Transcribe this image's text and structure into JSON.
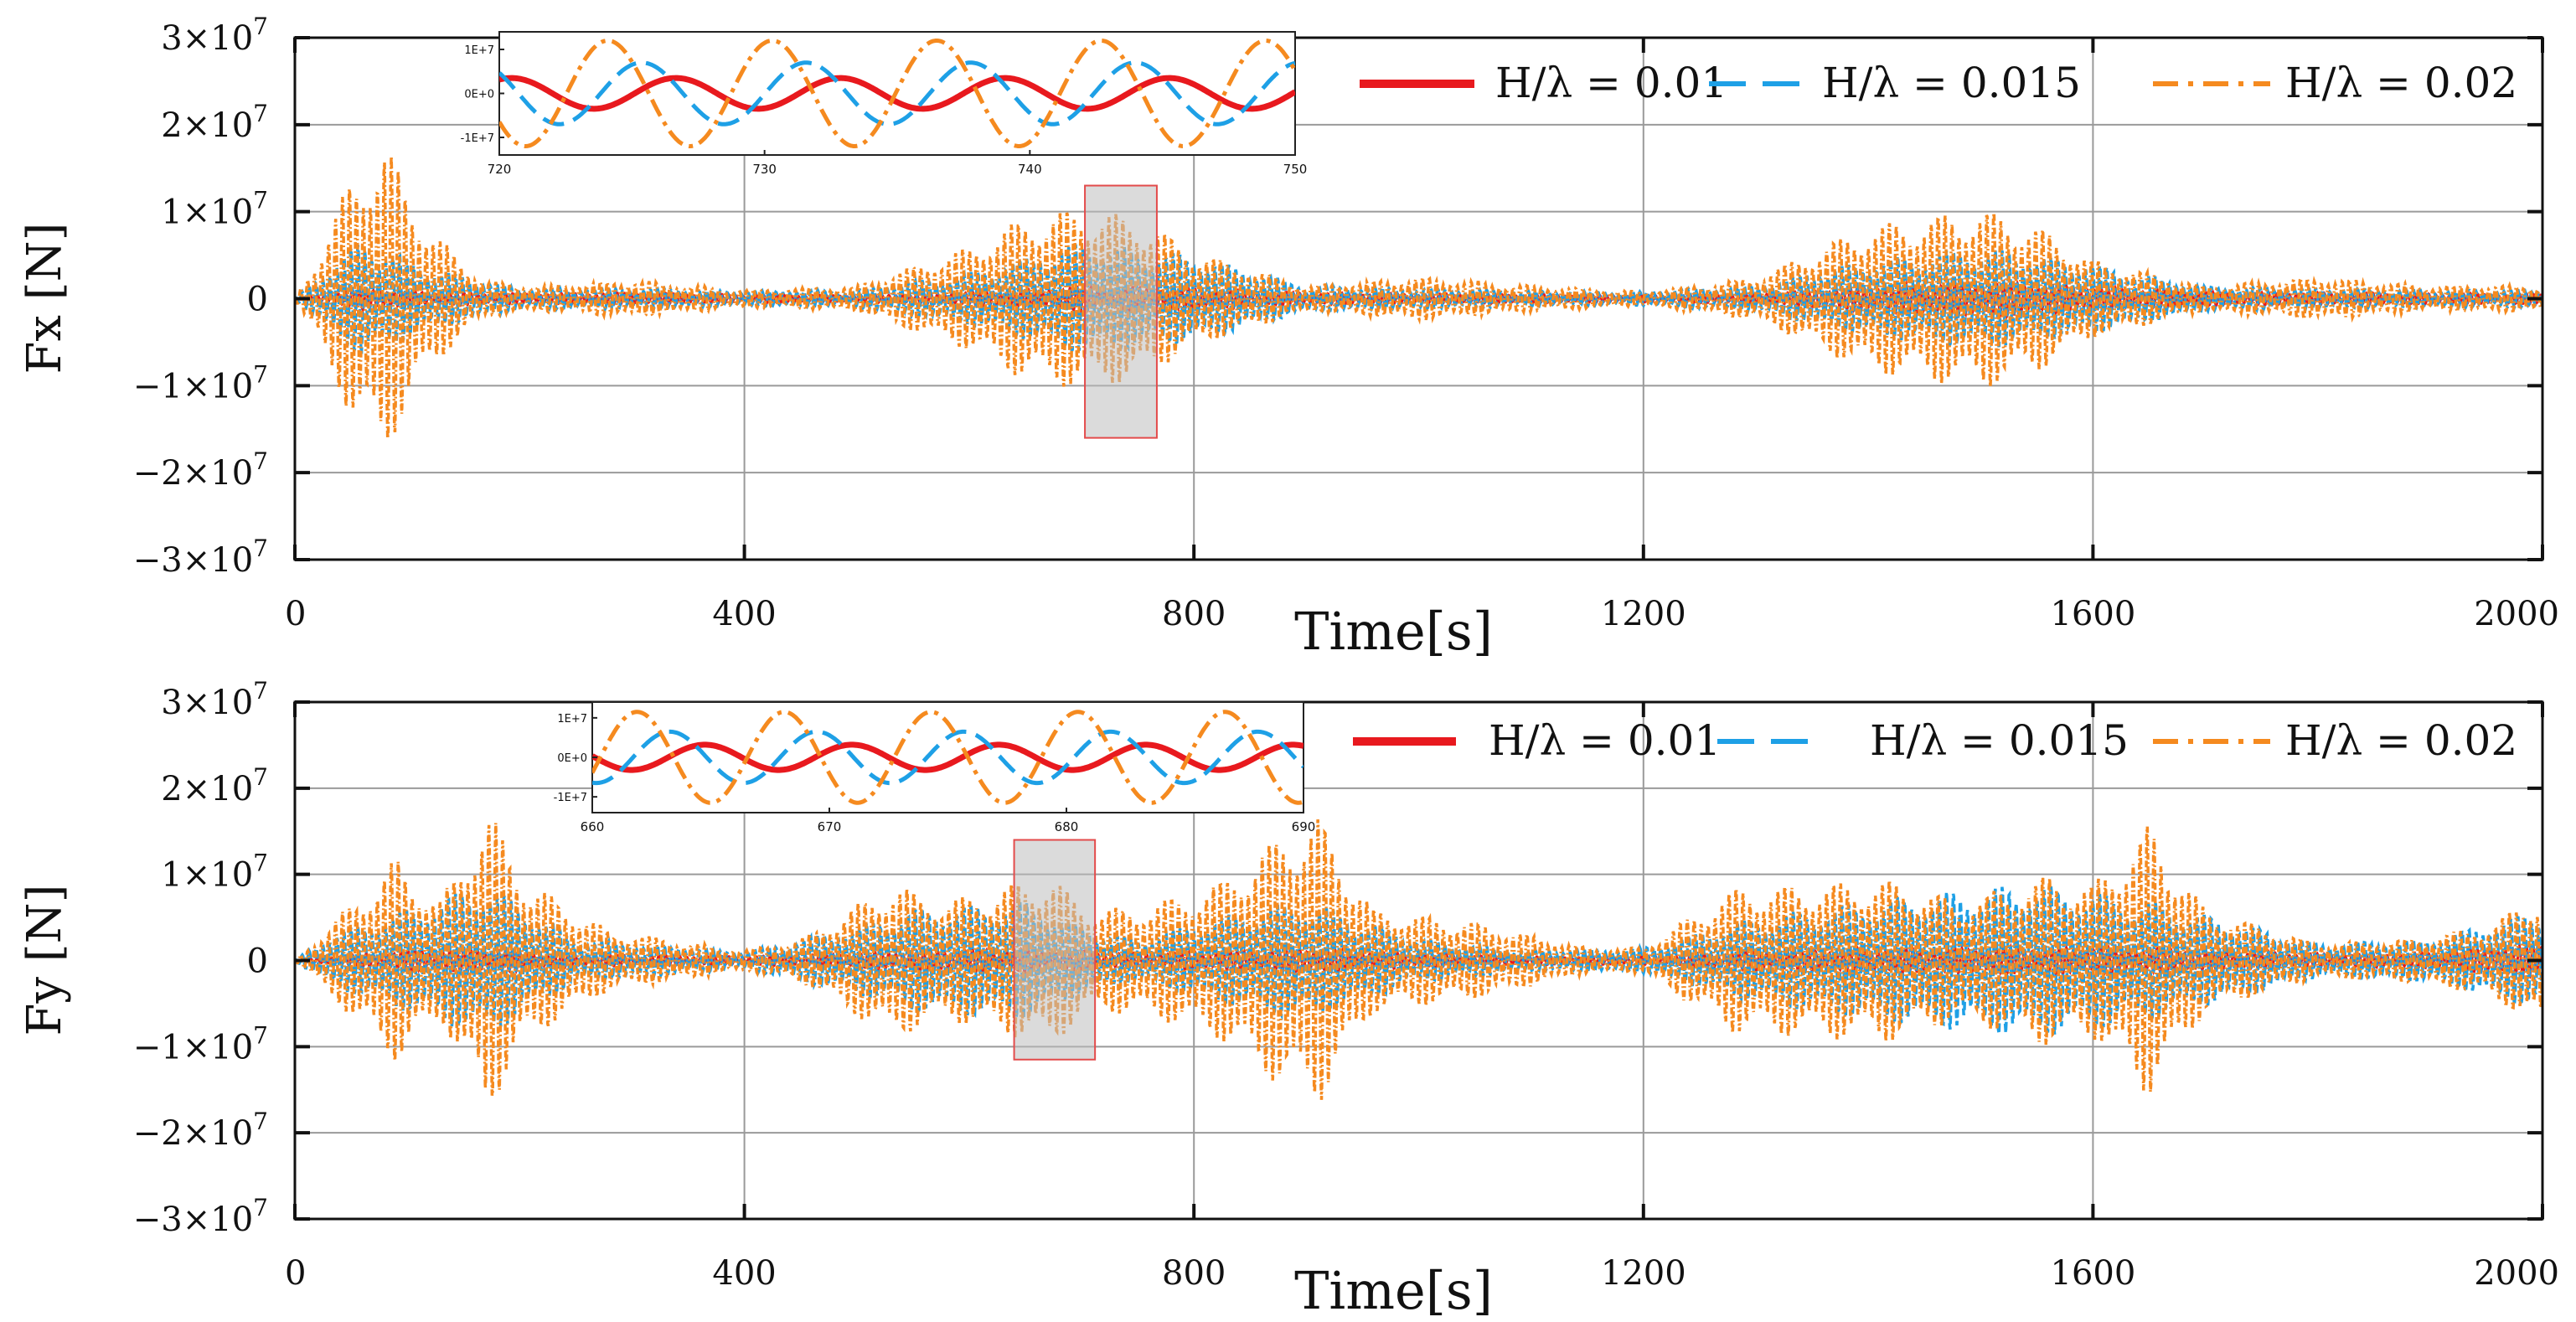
{
  "chart_data": [
    {
      "type": "line",
      "panel": "top",
      "ylabel": "Fx [N]",
      "xlabel": "Time[s]",
      "xlim": [
        0,
        2000
      ],
      "ylim": [
        -30000000,
        30000000
      ],
      "grid": true,
      "xticks": [
        {
          "value": 0,
          "label": "0"
        },
        {
          "value": 400,
          "label": "400"
        },
        {
          "value": 800,
          "label": "800"
        },
        {
          "value": 1200,
          "label": "1200"
        },
        {
          "value": 1600,
          "label": "1600"
        },
        {
          "value": 2000,
          "label": "2000"
        }
      ],
      "yticks": [
        {
          "value": 30000000,
          "mant": "3",
          "base": "×10",
          "exp": "7"
        },
        {
          "value": 20000000,
          "mant": "2",
          "base": "×10",
          "exp": "7"
        },
        {
          "value": 10000000,
          "mant": "1",
          "base": "×10",
          "exp": "7"
        },
        {
          "value": 0,
          "mant": "0",
          "base": "",
          "exp": ""
        },
        {
          "value": -10000000,
          "mant": "−1",
          "base": "×10",
          "exp": "7"
        },
        {
          "value": -20000000,
          "mant": "−2",
          "base": "×10",
          "exp": "7"
        },
        {
          "value": -30000000,
          "mant": "−3",
          "base": "×10",
          "exp": "7"
        }
      ],
      "highlight": {
        "x0": 703,
        "x1": 767,
        "y0": -16000000,
        "y1": 13000000
      },
      "legend": {
        "placement": "top-right",
        "entries": [
          {
            "label": "H/λ = 0.01",
            "color": "#e8191e",
            "style": "solid"
          },
          {
            "label": "H/λ = 0.015",
            "color": "#1ea0e6",
            "style": "dashed"
          },
          {
            "label": "H/λ = 0.02",
            "color": "#f58a1f",
            "style": "dashdot"
          }
        ]
      },
      "series": [
        {
          "name": "H/λ = 0.01",
          "color": "#e8191e",
          "style": "solid",
          "period": 6.2,
          "envelope": {
            "t": [
              0,
              20,
              60,
              120,
              200,
              300,
              400,
              500,
              600,
              700,
              800,
              900,
              1000,
              1100,
              1200,
              1300,
              1400,
              1500,
              1600,
              1700,
              1800,
              1900,
              2000
            ],
            "amp": [
              0,
              400000,
              1300000,
              800000,
              600000,
              700000,
              500000,
              400000,
              800000,
              1500000,
              1200000,
              700000,
              600000,
              500000,
              400000,
              600000,
              1500000,
              2200000,
              1400000,
              800000,
              700000,
              600000,
              600000
            ]
          }
        },
        {
          "name": "H/λ = 0.015",
          "color": "#1ea0e6",
          "style": "dashed",
          "period": 6.2,
          "envelope": {
            "t": [
              0,
              20,
              60,
              120,
              200,
              300,
              400,
              500,
              600,
              700,
              800,
              900,
              1000,
              1100,
              1200,
              1300,
              1400,
              1500,
              1600,
              1700,
              1800,
              1900,
              2000
            ],
            "amp": [
              0,
              2500000,
              7000000,
              3500000,
              1200000,
              1200000,
              900000,
              1000000,
              3000000,
              6500000,
              5000000,
              1500000,
              1200000,
              900000,
              800000,
              1500000,
              4500000,
              6000000,
              4000000,
              1400000,
              1200000,
              1000000,
              1000000
            ]
          }
        },
        {
          "name": "H/λ = 0.02",
          "color": "#f58a1f",
          "style": "dashdot",
          "period": 6.2,
          "envelope": {
            "t": [
              0,
              20,
              50,
              80,
              120,
              170,
              220,
              300,
              400,
              500,
              600,
              650,
              700,
              750,
              800,
              900,
              1000,
              1100,
              1200,
              1300,
              1400,
              1450,
              1500,
              1550,
              1600,
              1700,
              1800,
              1900,
              2000
            ],
            "amp": [
              0,
              5000000,
              14000000,
              18000000,
              8000000,
              2000000,
              1500000,
              2200000,
              1000000,
              1500000,
              6000000,
              9500000,
              10500000,
              9500000,
              5500000,
              1500000,
              2500000,
              1500000,
              800000,
              2500000,
              8500000,
              9500000,
              10500000,
              8500000,
              4500000,
              1500000,
              2500000,
              1500000,
              1500000
            ]
          }
        }
      ],
      "inset": {
        "xlim": [
          720,
          750
        ],
        "xticks": [
          720,
          730,
          740,
          750
        ],
        "yticks": [
          {
            "value": 10000000,
            "label": "1E+7"
          },
          {
            "value": 0,
            "label": "0E+0"
          },
          {
            "value": -10000000,
            "label": "-1E+7"
          }
        ],
        "ylim": [
          -14000000,
          14000000
        ],
        "series": [
          {
            "name": "H/λ = 0.01",
            "color": "#e8191e",
            "style": "solid",
            "amp": 3500000,
            "period": 6.2,
            "phase": 0.3
          },
          {
            "name": "H/λ = 0.015",
            "color": "#1ea0e6",
            "style": "dashed",
            "amp": 7000000,
            "period": 6.2,
            "phase": 1.6
          },
          {
            "name": "H/λ = 0.02",
            "color": "#f58a1f",
            "style": "dashdot",
            "amp": 12000000,
            "period": 6.2,
            "phase": 2.9
          }
        ]
      }
    },
    {
      "type": "line",
      "panel": "bottom",
      "ylabel": "Fy [N]",
      "xlabel": "Time[s]",
      "xlim": [
        0,
        2000
      ],
      "ylim": [
        -30000000,
        30000000
      ],
      "grid": true,
      "xticks": [
        {
          "value": 0,
          "label": "0"
        },
        {
          "value": 400,
          "label": "400"
        },
        {
          "value": 800,
          "label": "800"
        },
        {
          "value": 1200,
          "label": "1200"
        },
        {
          "value": 1600,
          "label": "1600"
        },
        {
          "value": 2000,
          "label": "2000"
        }
      ],
      "yticks": [
        {
          "value": 30000000,
          "mant": "3",
          "base": "×10",
          "exp": "7"
        },
        {
          "value": 20000000,
          "mant": "2",
          "base": "×10",
          "exp": "7"
        },
        {
          "value": 10000000,
          "mant": "1",
          "base": "×10",
          "exp": "7"
        },
        {
          "value": 0,
          "mant": "0",
          "base": "",
          "exp": ""
        },
        {
          "value": -10000000,
          "mant": "−1",
          "base": "×10",
          "exp": "7"
        },
        {
          "value": -20000000,
          "mant": "−2",
          "base": "×10",
          "exp": "7"
        },
        {
          "value": -30000000,
          "mant": "−3",
          "base": "×10",
          "exp": "7"
        }
      ],
      "highlight": {
        "x0": 640,
        "x1": 712,
        "y0": -11500000,
        "y1": 14000000
      },
      "legend": {
        "placement": "top-right",
        "entries": [
          {
            "label": "H/λ = 0.01",
            "color": "#e8191e",
            "style": "solid"
          },
          {
            "label": "H/λ = 0.015",
            "color": "#1ea0e6",
            "style": "dashed"
          },
          {
            "label": "H/λ = 0.02",
            "color": "#f58a1f",
            "style": "dashdot"
          }
        ]
      },
      "series": [
        {
          "name": "H/λ = 0.01",
          "color": "#e8191e",
          "style": "solid",
          "period": 6.2,
          "envelope": {
            "t": [
              0,
              30,
              100,
              170,
              250,
              400,
              500,
              550,
              650,
              750,
              850,
              900,
              1000,
              1100,
              1200,
              1300,
              1400,
              1500,
              1550,
              1650,
              1800,
              1900,
              2000
            ],
            "amp": [
              0,
              500000,
              1200000,
              1500000,
              700000,
              500000,
              900000,
              1200000,
              1400000,
              900000,
              1200000,
              1500000,
              800000,
              500000,
              500000,
              1200000,
              1400000,
              1500000,
              1600000,
              1500000,
              800000,
              900000,
              2000000
            ]
          }
        },
        {
          "name": "H/λ = 0.015",
          "color": "#1ea0e6",
          "style": "dashed",
          "period": 6.2,
          "envelope": {
            "t": [
              0,
              30,
              100,
              170,
              250,
              400,
              500,
              550,
              650,
              700,
              750,
              850,
              900,
              1000,
              1100,
              1200,
              1300,
              1400,
              1500,
              1550,
              1650,
              1800,
              1900,
              2000
            ],
            "amp": [
              0,
              3000000,
              6000000,
              9000000,
              2500000,
              1000000,
              4000000,
              6000000,
              7000000,
              4000000,
              2500000,
              6000000,
              7000000,
              2500000,
              1200000,
              1500000,
              5000000,
              7000000,
              8500000,
              9000000,
              7000000,
              2000000,
              2500000,
              6000000
            ]
          }
        },
        {
          "name": "H/λ = 0.02",
          "color": "#f58a1f",
          "style": "dashdot",
          "period": 6.2,
          "envelope": {
            "t": [
              0,
              30,
              90,
              130,
              170,
              210,
              280,
              400,
              450,
              530,
              580,
              640,
              670,
              710,
              760,
              820,
              880,
              910,
              960,
              1050,
              1150,
              1200,
              1280,
              1350,
              1420,
              1480,
              1560,
              1600,
              1650,
              1700,
              1800,
              1880,
              1950,
              2000
            ],
            "amp": [
              0,
              4000000,
              12000000,
              7000000,
              18000000,
              9000000,
              3500000,
              1200000,
              2500000,
              9000000,
              7000000,
              9000000,
              10000000,
              6000000,
              6500000,
              9000000,
              15000000,
              17000000,
              6000000,
              4500000,
              1500000,
              1500000,
              8500000,
              9000000,
              9500000,
              7000000,
              10000000,
              9000000,
              16000000,
              6000000,
              2000000,
              2500000,
              4000000,
              8000000
            ]
          }
        }
      ],
      "inset": {
        "xlim": [
          660,
          690
        ],
        "xticks": [
          660,
          670,
          680,
          690
        ],
        "yticks": [
          {
            "value": 10000000,
            "label": "1E+7"
          },
          {
            "value": 0,
            "label": "0E+0"
          },
          {
            "value": -10000000,
            "label": "-1E+7"
          }
        ],
        "ylim": [
          -14000000,
          14000000
        ],
        "series": [
          {
            "name": "H/λ = 0.01",
            "color": "#e8191e",
            "style": "solid",
            "amp": 3200000,
            "period": 6.2,
            "phase": 0.2
          },
          {
            "name": "H/λ = 0.015",
            "color": "#1ea0e6",
            "style": "dashed",
            "amp": 6500000,
            "period": 6.2,
            "phase": 1.7
          },
          {
            "name": "H/λ = 0.02",
            "color": "#f58a1f",
            "style": "dashdot",
            "amp": 11500000,
            "period": 6.2,
            "phase": 3.1
          }
        ]
      }
    }
  ]
}
